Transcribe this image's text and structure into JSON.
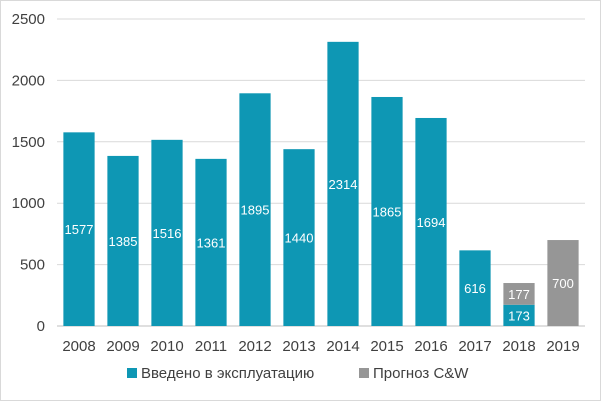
{
  "chart_data": {
    "type": "bar",
    "stacked": true,
    "categories": [
      "2008",
      "2009",
      "2010",
      "2011",
      "2012",
      "2013",
      "2014",
      "2015",
      "2016",
      "2017",
      "2018",
      "2019"
    ],
    "series": [
      {
        "name": "Введено в эксплуатацию",
        "color": "#0e97b4",
        "values": [
          1577,
          1385,
          1516,
          1361,
          1895,
          1440,
          2314,
          1865,
          1694,
          616,
          173,
          null
        ]
      },
      {
        "name": "Прогноз C&W",
        "color": "#969696",
        "values": [
          null,
          null,
          null,
          null,
          null,
          null,
          null,
          null,
          null,
          null,
          177,
          700
        ]
      }
    ],
    "ylim": [
      0,
      2500
    ],
    "yticks": [
      0,
      500,
      1000,
      1500,
      2000,
      2500
    ],
    "grid": true,
    "legend_position": "bottom",
    "title": "",
    "xlabel": "",
    "ylabel": ""
  }
}
